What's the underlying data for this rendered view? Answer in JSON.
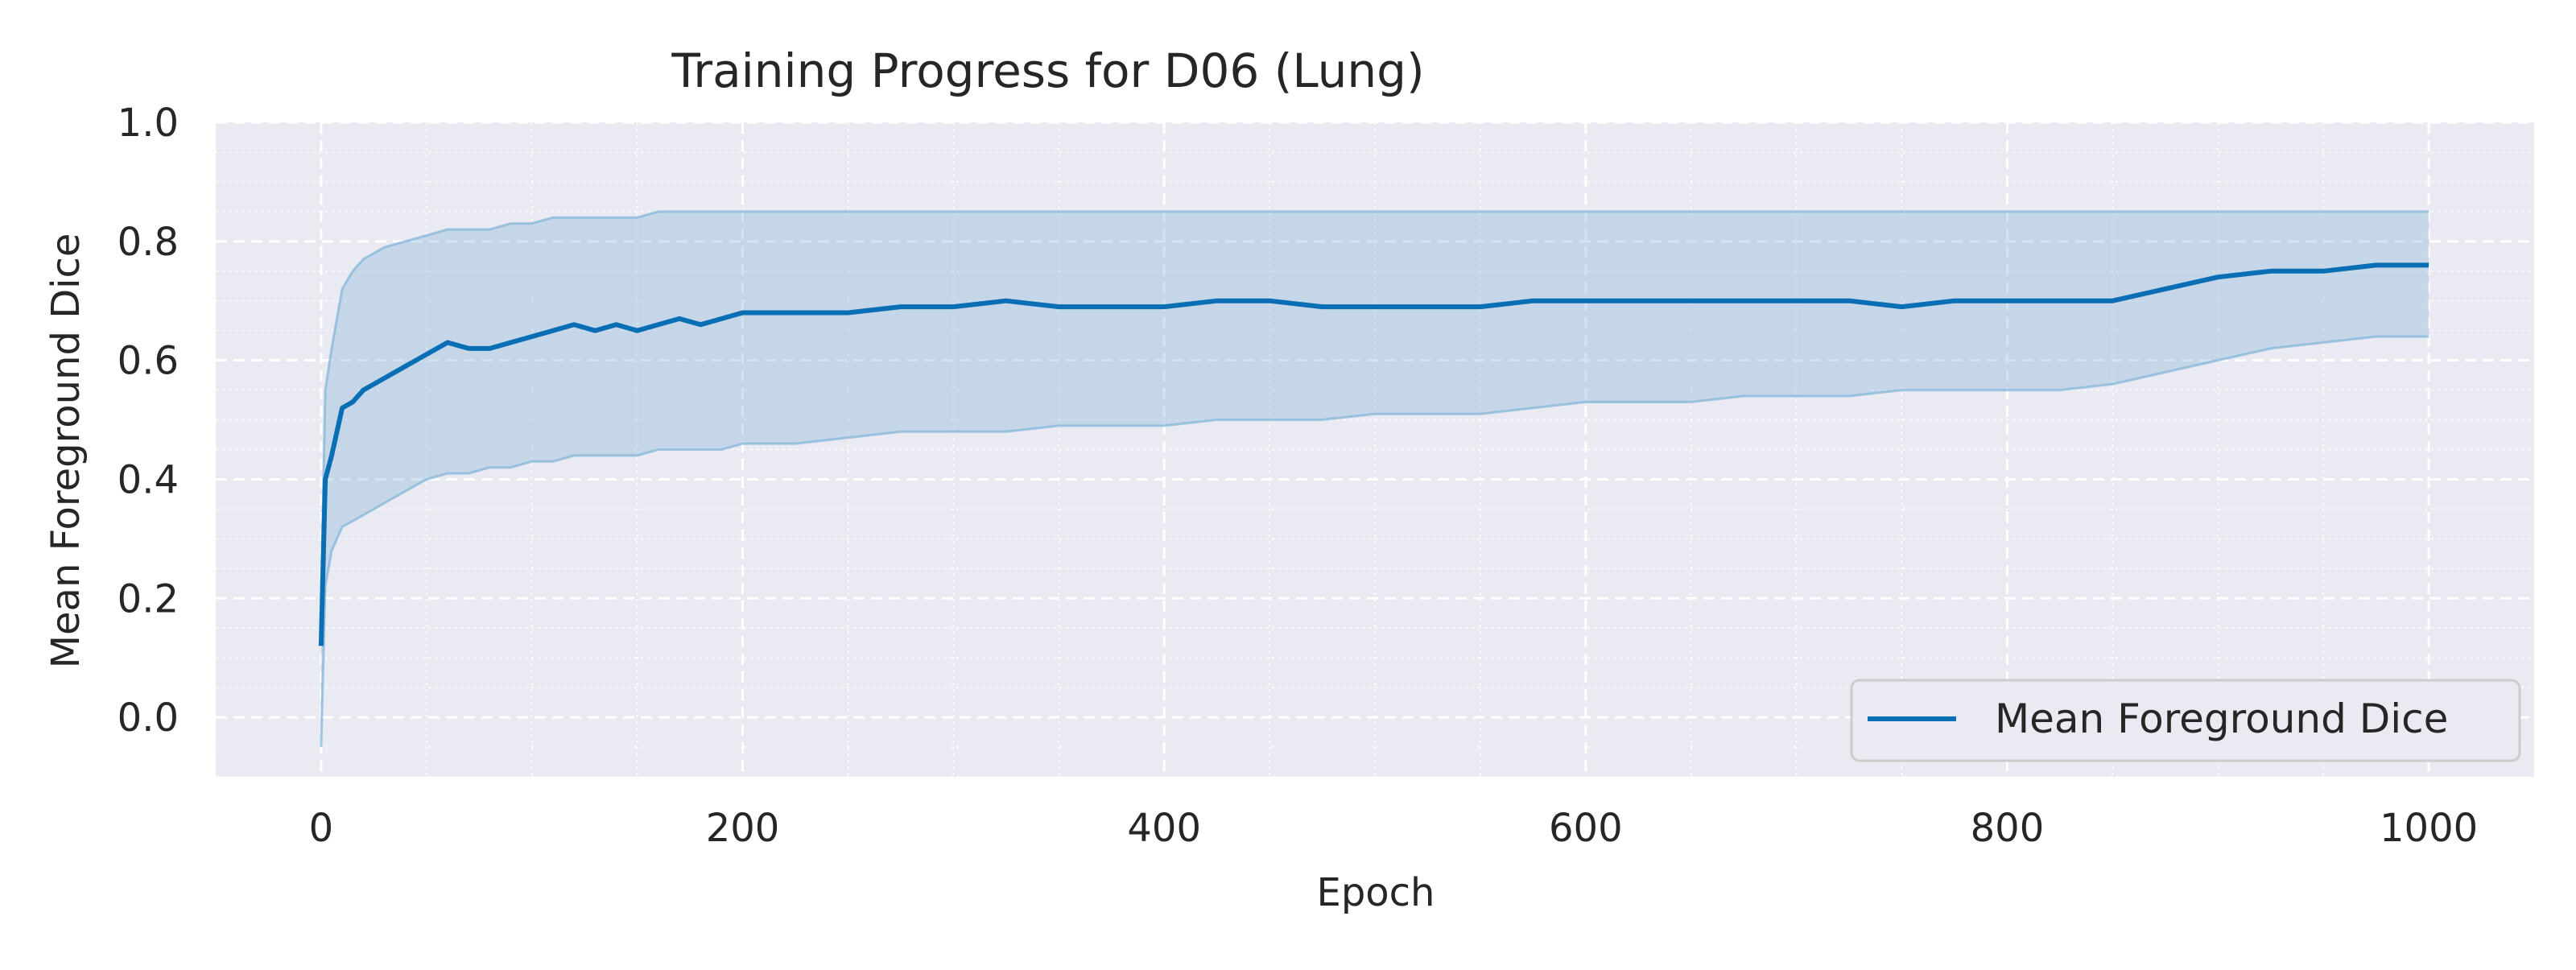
{
  "chart_data": {
    "type": "line",
    "title": "Training Progress for D06 (Lung)",
    "xlabel": "Epoch",
    "ylabel": "Mean Foreground Dice",
    "xlim": [
      -50,
      1050
    ],
    "ylim": [
      -0.1,
      1.0
    ],
    "x_ticks": [
      0,
      200,
      400,
      600,
      800,
      1000
    ],
    "y_ticks": [
      0.0,
      0.2,
      0.4,
      0.6,
      0.8,
      1.0
    ],
    "x_tick_labels": [
      "0",
      "200",
      "400",
      "600",
      "800",
      "1000"
    ],
    "y_tick_labels": [
      "0.0",
      "0.2",
      "0.4",
      "0.6",
      "0.8",
      "1.0"
    ],
    "grid": true,
    "minor_grid": true,
    "legend_position": "lower-right",
    "series": [
      {
        "name": "Mean Foreground Dice",
        "color": "#0a6eb4",
        "band_color": "#7fb3d8",
        "x": [
          0,
          2,
          5,
          10,
          15,
          20,
          25,
          30,
          40,
          50,
          60,
          70,
          80,
          90,
          100,
          110,
          120,
          130,
          140,
          150,
          160,
          170,
          180,
          190,
          200,
          225,
          250,
          275,
          300,
          325,
          350,
          375,
          400,
          425,
          450,
          475,
          500,
          525,
          550,
          575,
          600,
          625,
          650,
          675,
          700,
          725,
          750,
          775,
          800,
          825,
          850,
          875,
          900,
          925,
          950,
          975,
          1000
        ],
        "mean": [
          0.12,
          0.4,
          0.44,
          0.52,
          0.53,
          0.55,
          0.56,
          0.57,
          0.59,
          0.61,
          0.63,
          0.62,
          0.62,
          0.63,
          0.64,
          0.65,
          0.66,
          0.65,
          0.66,
          0.65,
          0.66,
          0.67,
          0.66,
          0.67,
          0.68,
          0.68,
          0.68,
          0.69,
          0.69,
          0.7,
          0.69,
          0.69,
          0.69,
          0.7,
          0.7,
          0.69,
          0.69,
          0.69,
          0.69,
          0.7,
          0.7,
          0.7,
          0.7,
          0.7,
          0.7,
          0.7,
          0.69,
          0.7,
          0.7,
          0.7,
          0.7,
          0.72,
          0.74,
          0.75,
          0.75,
          0.76,
          0.76
        ],
        "upper": [
          0.2,
          0.55,
          0.62,
          0.72,
          0.75,
          0.77,
          0.78,
          0.79,
          0.8,
          0.81,
          0.82,
          0.82,
          0.82,
          0.83,
          0.83,
          0.84,
          0.84,
          0.84,
          0.84,
          0.84,
          0.85,
          0.85,
          0.85,
          0.85,
          0.85,
          0.85,
          0.85,
          0.85,
          0.85,
          0.85,
          0.85,
          0.85,
          0.85,
          0.85,
          0.85,
          0.85,
          0.85,
          0.85,
          0.85,
          0.85,
          0.85,
          0.85,
          0.85,
          0.85,
          0.85,
          0.85,
          0.85,
          0.85,
          0.85,
          0.85,
          0.85,
          0.85,
          0.85,
          0.85,
          0.85,
          0.85,
          0.85
        ],
        "lower": [
          -0.05,
          0.22,
          0.28,
          0.32,
          0.33,
          0.34,
          0.35,
          0.36,
          0.38,
          0.4,
          0.41,
          0.41,
          0.42,
          0.42,
          0.43,
          0.43,
          0.44,
          0.44,
          0.44,
          0.44,
          0.45,
          0.45,
          0.45,
          0.45,
          0.46,
          0.46,
          0.47,
          0.48,
          0.48,
          0.48,
          0.49,
          0.49,
          0.49,
          0.5,
          0.5,
          0.5,
          0.51,
          0.51,
          0.51,
          0.52,
          0.53,
          0.53,
          0.53,
          0.54,
          0.54,
          0.54,
          0.55,
          0.55,
          0.55,
          0.55,
          0.56,
          0.58,
          0.6,
          0.62,
          0.63,
          0.64,
          0.64
        ]
      }
    ]
  }
}
